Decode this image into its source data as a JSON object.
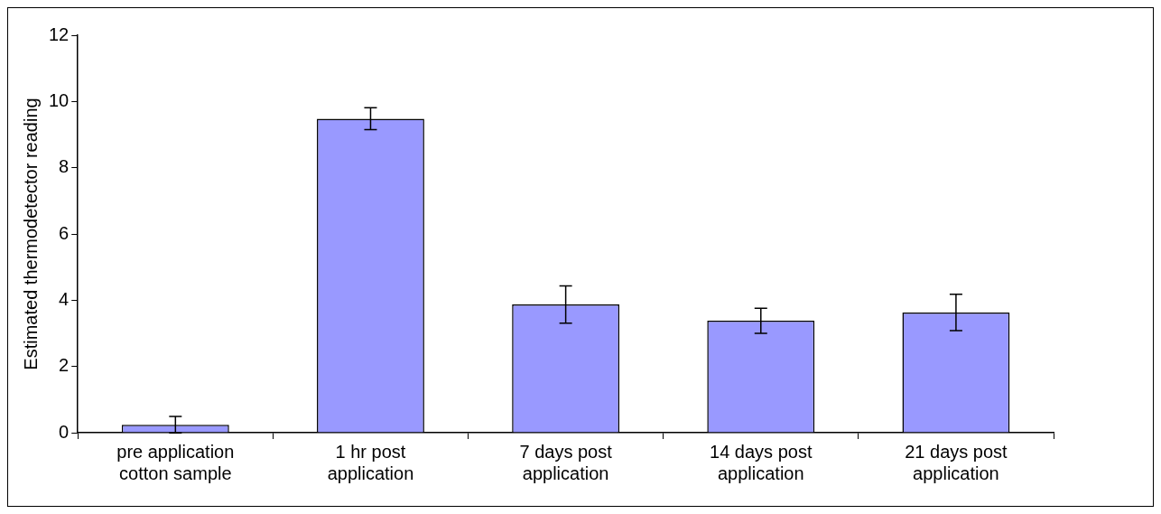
{
  "chart_data": {
    "type": "bar",
    "ylabel": "Estimated thermodetector reading",
    "categories": [
      "pre application\ncotton sample",
      "1 hr post\napplication",
      "7 days post\napplication",
      "14 days post\napplication",
      "21 days post\napplication"
    ],
    "values": [
      0.24,
      9.48,
      3.87,
      3.38,
      3.63
    ],
    "errors": [
      0.25,
      0.33,
      0.56,
      0.38,
      0.55
    ],
    "color": "#9999ff",
    "ylim": [
      0,
      12
    ],
    "yticks": [
      0,
      2,
      4,
      6,
      8,
      10,
      12
    ],
    "grid": false,
    "legend": false
  }
}
